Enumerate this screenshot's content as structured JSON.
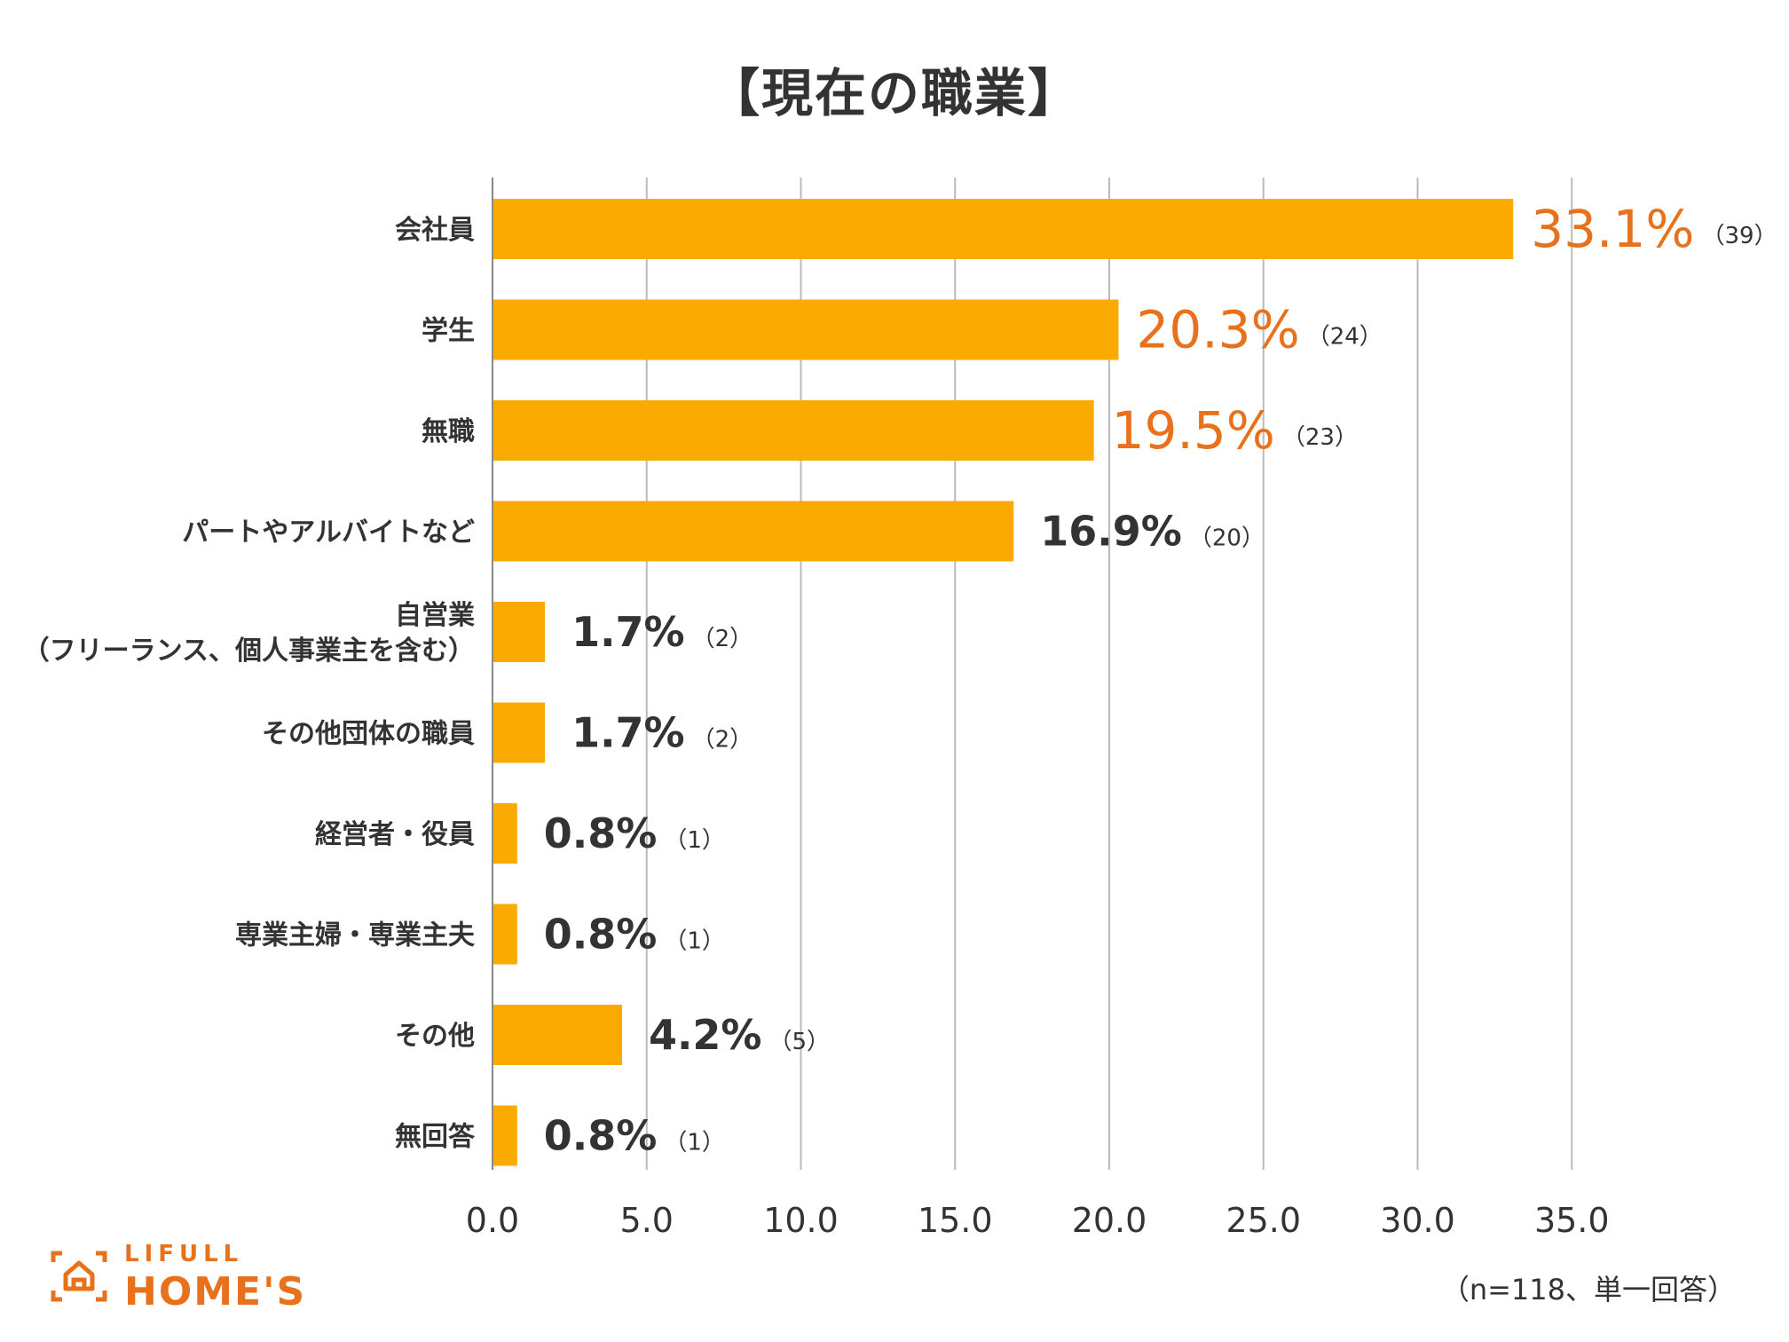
{
  "chart_data": {
    "type": "bar",
    "orientation": "horizontal",
    "title": "【現在の職業】",
    "categories": [
      "会社員",
      "学生",
      "無職",
      "パートやアルバイトなど",
      "自営業\n（フリーランス、個人事業主を含む）",
      "その他団体の職員",
      "経営者・役員",
      "専業主婦・専業主夫",
      "その他",
      "無回答"
    ],
    "values": [
      33.1,
      20.3,
      19.5,
      16.9,
      1.7,
      1.7,
      0.8,
      0.8,
      4.2,
      0.8
    ],
    "value_labels": [
      "33.1%",
      "20.3%",
      "19.5%",
      "16.9%",
      "1.7%",
      "1.7%",
      "0.8%",
      "0.8%",
      "4.2%",
      "0.8%"
    ],
    "counts": [
      "（39）",
      "（24）",
      "（23）",
      "（20）",
      "（2）",
      "（2）",
      "（1）",
      "（1）",
      "（5）",
      "（1）"
    ],
    "highlight_top": 3,
    "xlim": [
      0,
      35
    ],
    "xticks": [
      "0.0",
      "5.0",
      "10.0",
      "15.0",
      "20.0",
      "25.0",
      "30.0",
      "35.0"
    ],
    "grid": true,
    "xlabel": "",
    "ylabel": "",
    "note": "（n=118、単一回答）",
    "colors": {
      "bar": "#fbaa01",
      "highlight_label": "#e8711c",
      "label": "#333333",
      "grid": "#bbbbbb"
    }
  },
  "logo": {
    "top_text": "LIFULL",
    "bottom_text": "HOME'S"
  }
}
